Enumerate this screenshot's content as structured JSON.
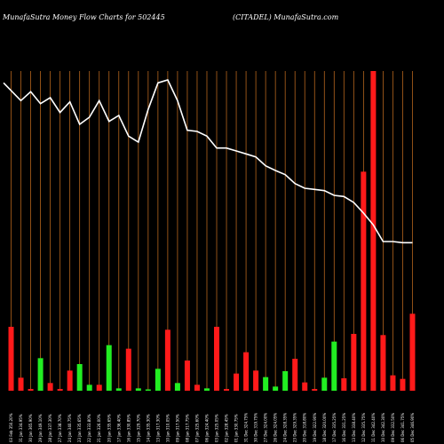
{
  "header": {
    "title_left": "MunafaSutra  Money Flow  Charts for 502445",
    "title_right": "(CITADEL) MunafaSutra.com"
  },
  "colors": {
    "background": "#000000",
    "grid": "#b5651d",
    "up": "#22ee22",
    "down": "#ff1a1a",
    "line": "#ffffff",
    "text": "#ffffff"
  },
  "chart_data": {
    "type": "bar",
    "title": "MunafaSutra  Money Flow  Charts for 502445",
    "subtitle": "(CITADEL) MunafaSutra.com",
    "grid": true,
    "categories": [
      "03 Feb 2025",
      "31 Jan 2025",
      "30 Jan 2025",
      "29 Jan 2025",
      "28 Jan 2025",
      "27 Jan 2025",
      "24 Jan 2025",
      "23 Jan 2025",
      "22 Jan 2025",
      "21 Jan 2025",
      "20 Jan 2025",
      "17 Jan 2025",
      "16 Jan 2025",
      "15 Jan 2025",
      "14 Jan 2025",
      "13 Jan 2025",
      "10 Jan 2025",
      "09 Jan 2025",
      "08 Jan 2025",
      "07 Jan 2025",
      "06 Jan 2025",
      "03 Jan 2025",
      "02 Jan 2025",
      "01 Jan 2025",
      "31 Dec 2024",
      "30 Dec 2024",
      "27 Dec 2024",
      "26 Dec 2024",
      "24 Dec 2024",
      "23 Dec 2024",
      "20 Dec 2024",
      "19 Dec 2024",
      "18 Dec 2024",
      "17 Dec 2024",
      "16 Dec 2024",
      "13 Dec 2024",
      "12 Dec 2024",
      "11 Dec 2024",
      "10 Dec 2024",
      "09 Dec 2024",
      "06 Dec 2024",
      "05 Dec 2024"
    ],
    "tick_labels": [
      "03 Feb 350.20%",
      "31 Jan 334.95%",
      "30 Jan 365.90%",
      "29 Jan 349.10%",
      "28 Jan 337.30%",
      "27 Jan 338.70%",
      "24 Jan 340.75%",
      "23 Jan 335.65%",
      "22 Jan 333.80%",
      "21 Jan 326.00%",
      "20 Jan 335.65%",
      "17 Jan 336.40%",
      "16 Jan 330.85%",
      "15 Jan 329.70%",
      "14 Jan 335.30%",
      "13 Jan 317.30%",
      "10 Jan 310.05%",
      "09 Jan 317.50%",
      "08 Jan 317.75%",
      "07 Jan 325.60%",
      "06 Jan 324.40%",
      "03 Jan 325.05%",
      "02 Jan 328.45%",
      "01 Jan 330.75%",
      "31 Dec 324.75%",
      "30 Dec 319.75%",
      "27 Dec 324.00%",
      "26 Dec 324.05%",
      "24 Dec 328.35%",
      "23 Dec 329.35%",
      "20 Dec 318.80%",
      "19 Dec 322.90%",
      "18 Dec 320.00%",
      "17 Dec 335.25%",
      "16 Dec 331.25%",
      "13 Dec 338.40%",
      "12 Dec 335.75%",
      "11 Dec 342.40%",
      "10 Dec 342.30%",
      "09 Dec 332.50%",
      "06 Dec 341.75%",
      "05 Dec 346.90%"
    ],
    "values": [
      108,
      22,
      3,
      55,
      13,
      3,
      34,
      45,
      10,
      10,
      77,
      4,
      71,
      4,
      2,
      37,
      103,
      13,
      51,
      10,
      4,
      108,
      3,
      29,
      65,
      34,
      23,
      7,
      33,
      54,
      14,
      3,
      22,
      83,
      21,
      96,
      370,
      540,
      94,
      26,
      20,
      130
    ],
    "bar_colors": [
      "red",
      "red",
      "red",
      "green",
      "red",
      "red",
      "red",
      "green",
      "green",
      "red",
      "green",
      "green",
      "red",
      "green",
      "green",
      "green",
      "red",
      "green",
      "red",
      "red",
      "green",
      "red",
      "red",
      "red",
      "red",
      "red",
      "green",
      "green",
      "green",
      "red",
      "red",
      "red",
      "green",
      "green",
      "red",
      "red",
      "red",
      "red",
      "red",
      "red",
      "red",
      "red"
    ],
    "line_series": {
      "values": [
        520,
        490,
        505,
        485,
        495,
        470,
        488,
        450,
        462,
        490,
        455,
        465,
        430,
        420,
        475,
        520,
        525,
        490,
        440,
        438,
        430,
        410,
        410,
        405,
        400,
        395,
        380,
        372,
        365,
        350,
        342,
        340,
        338,
        330,
        328,
        318,
        300,
        280,
        252,
        252,
        250,
        250
      ]
    },
    "ylim": [
      0,
      540
    ]
  }
}
